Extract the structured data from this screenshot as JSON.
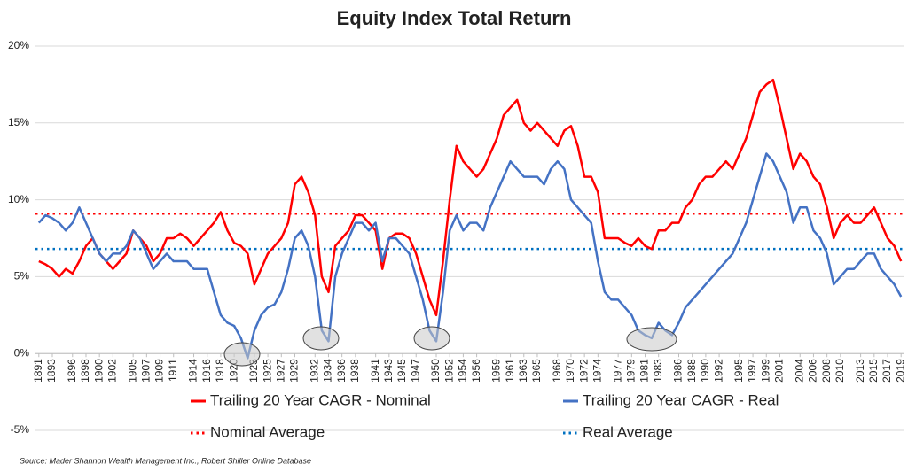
{
  "chart_data": {
    "type": "line",
    "title": "Equity Index Total Return",
    "source": "Source: Mader Shannon Wealth Management Inc., Robert Shiller Online Database",
    "x": [
      1891,
      1892,
      1893,
      1894,
      1895,
      1896,
      1897,
      1898,
      1899,
      1900,
      1901,
      1902,
      1903,
      1904,
      1905,
      1906,
      1907,
      1908,
      1909,
      1910,
      1911,
      1912,
      1913,
      1914,
      1915,
      1916,
      1917,
      1918,
      1919,
      1920,
      1921,
      1922,
      1923,
      1924,
      1925,
      1926,
      1927,
      1928,
      1929,
      1930,
      1931,
      1932,
      1933,
      1934,
      1935,
      1936,
      1937,
      1938,
      1939,
      1940,
      1941,
      1942,
      1943,
      1944,
      1945,
      1946,
      1947,
      1948,
      1949,
      1950,
      1951,
      1952,
      1953,
      1954,
      1955,
      1956,
      1957,
      1958,
      1959,
      1960,
      1961,
      1962,
      1963,
      1964,
      1965,
      1966,
      1967,
      1968,
      1969,
      1970,
      1971,
      1972,
      1973,
      1974,
      1975,
      1976,
      1977,
      1978,
      1979,
      1980,
      1981,
      1982,
      1983,
      1984,
      1985,
      1986,
      1987,
      1988,
      1989,
      1990,
      1991,
      1992,
      1993,
      1994,
      1995,
      1996,
      1997,
      1998,
      1999,
      2000,
      2001,
      2002,
      2003,
      2004,
      2005,
      2006,
      2007,
      2008,
      2009,
      2010,
      2011,
      2012,
      2013,
      2014,
      2015,
      2016,
      2017,
      2018,
      2019
    ],
    "series": [
      {
        "name": "Trailing 20 Year CAGR - Nominal",
        "color": "#ff0000",
        "values": [
          6.0,
          5.8,
          5.5,
          5.0,
          5.5,
          5.2,
          6.0,
          7.0,
          7.5,
          6.5,
          6.0,
          5.5,
          6.0,
          6.5,
          8.0,
          7.5,
          7.0,
          6.0,
          6.5,
          7.5,
          7.5,
          7.8,
          7.5,
          7.0,
          7.5,
          8.0,
          8.5,
          9.2,
          8.0,
          7.2,
          7.0,
          6.5,
          4.5,
          5.5,
          6.5,
          7.0,
          7.5,
          8.5,
          11.0,
          11.5,
          10.5,
          9.0,
          5.0,
          4.0,
          7.0,
          7.5,
          8.0,
          9.0,
          9.0,
          8.5,
          8.0,
          5.5,
          7.5,
          7.8,
          7.8,
          7.5,
          6.5,
          5.0,
          3.5,
          2.5,
          6.0,
          10.0,
          13.5,
          12.5,
          12.0,
          11.5,
          12.0,
          13.0,
          14.0,
          15.5,
          16.0,
          16.5,
          15.0,
          14.5,
          15.0,
          14.5,
          14.0,
          13.5,
          14.5,
          14.8,
          13.5,
          11.5,
          11.5,
          10.5,
          7.5,
          7.5,
          7.5,
          7.2,
          7.0,
          7.5,
          7.0,
          6.8,
          8.0,
          8.0,
          8.5,
          8.5,
          9.5,
          10.0,
          11.0,
          11.5,
          11.5,
          12.0,
          12.5,
          12.0,
          13.0,
          14.0,
          15.5,
          17.0,
          17.5,
          17.8,
          16.0,
          14.0,
          12.0,
          13.0,
          12.5,
          11.5,
          11.0,
          9.5,
          7.5,
          8.5,
          9.0,
          8.5,
          8.5,
          9.0,
          9.5,
          8.5,
          7.5,
          7.0,
          6.0
        ]
      },
      {
        "name": "Trailing 20 Year CAGR - Real",
        "color": "#4472c4",
        "values": [
          8.5,
          9.0,
          8.8,
          8.5,
          8.0,
          8.5,
          9.5,
          8.5,
          7.5,
          6.5,
          6.0,
          6.5,
          6.5,
          7.0,
          8.0,
          7.5,
          6.5,
          5.5,
          6.0,
          6.5,
          6.0,
          6.0,
          6.0,
          5.5,
          5.5,
          5.5,
          4.0,
          2.5,
          2.0,
          1.8,
          1.0,
          -0.3,
          1.5,
          2.5,
          3.0,
          3.2,
          4.0,
          5.5,
          7.5,
          8.0,
          7.0,
          5.0,
          1.5,
          0.8,
          5.0,
          6.5,
          7.5,
          8.5,
          8.5,
          8.0,
          8.5,
          6.0,
          7.5,
          7.5,
          7.0,
          6.5,
          5.0,
          3.5,
          1.5,
          0.8,
          4.0,
          8.0,
          9.0,
          8.0,
          8.5,
          8.5,
          8.0,
          9.5,
          10.5,
          11.5,
          12.5,
          12.0,
          11.5,
          11.5,
          11.5,
          11.0,
          12.0,
          12.5,
          12.0,
          10.0,
          9.5,
          9.0,
          8.5,
          6.0,
          4.0,
          3.5,
          3.5,
          3.0,
          2.5,
          1.5,
          1.2,
          1.0,
          2.0,
          1.5,
          1.2,
          2.0,
          3.0,
          3.5,
          4.0,
          4.5,
          5.0,
          5.5,
          6.0,
          6.5,
          7.5,
          8.5,
          10.0,
          11.5,
          13.0,
          12.5,
          11.5,
          10.5,
          8.5,
          9.5,
          9.5,
          8.0,
          7.5,
          6.5,
          4.5,
          5.0,
          5.5,
          5.5,
          6.0,
          6.5,
          6.5,
          5.5,
          5.0,
          4.5,
          3.7
        ]
      }
    ],
    "reference_lines": [
      {
        "name": "Nominal Average",
        "value": 9.1,
        "color": "#ff0000"
      },
      {
        "name": "Real Average",
        "value": 6.8,
        "color": "#0070c0"
      }
    ],
    "xlim": [
      1890.5,
      2019.5
    ],
    "xticks": [
      1891,
      1893,
      1896,
      1898,
      1900,
      1902,
      1905,
      1907,
      1909,
      1911,
      1914,
      1916,
      1918,
      1920,
      1923,
      1925,
      1927,
      1929,
      1932,
      1934,
      1936,
      1938,
      1941,
      1943,
      1945,
      1947,
      1950,
      1952,
      1954,
      1956,
      1959,
      1961,
      1963,
      1965,
      1968,
      1970,
      1972,
      1974,
      1977,
      1979,
      1981,
      1983,
      1986,
      1988,
      1990,
      1992,
      1995,
      1997,
      1999,
      2001,
      2004,
      2006,
      2008,
      2010,
      2013,
      2015,
      2017,
      2019
    ],
    "ylim": [
      -5,
      20
    ],
    "yticks": [
      {
        "value": -5,
        "label": "-5%"
      },
      {
        "value": 0,
        "label": "0%"
      },
      {
        "value": 5,
        "label": "5%"
      },
      {
        "value": 10,
        "label": "10%"
      },
      {
        "value": 15,
        "label": "15%"
      },
      {
        "value": 20,
        "label": "20%"
      }
    ],
    "grid": true
  }
}
